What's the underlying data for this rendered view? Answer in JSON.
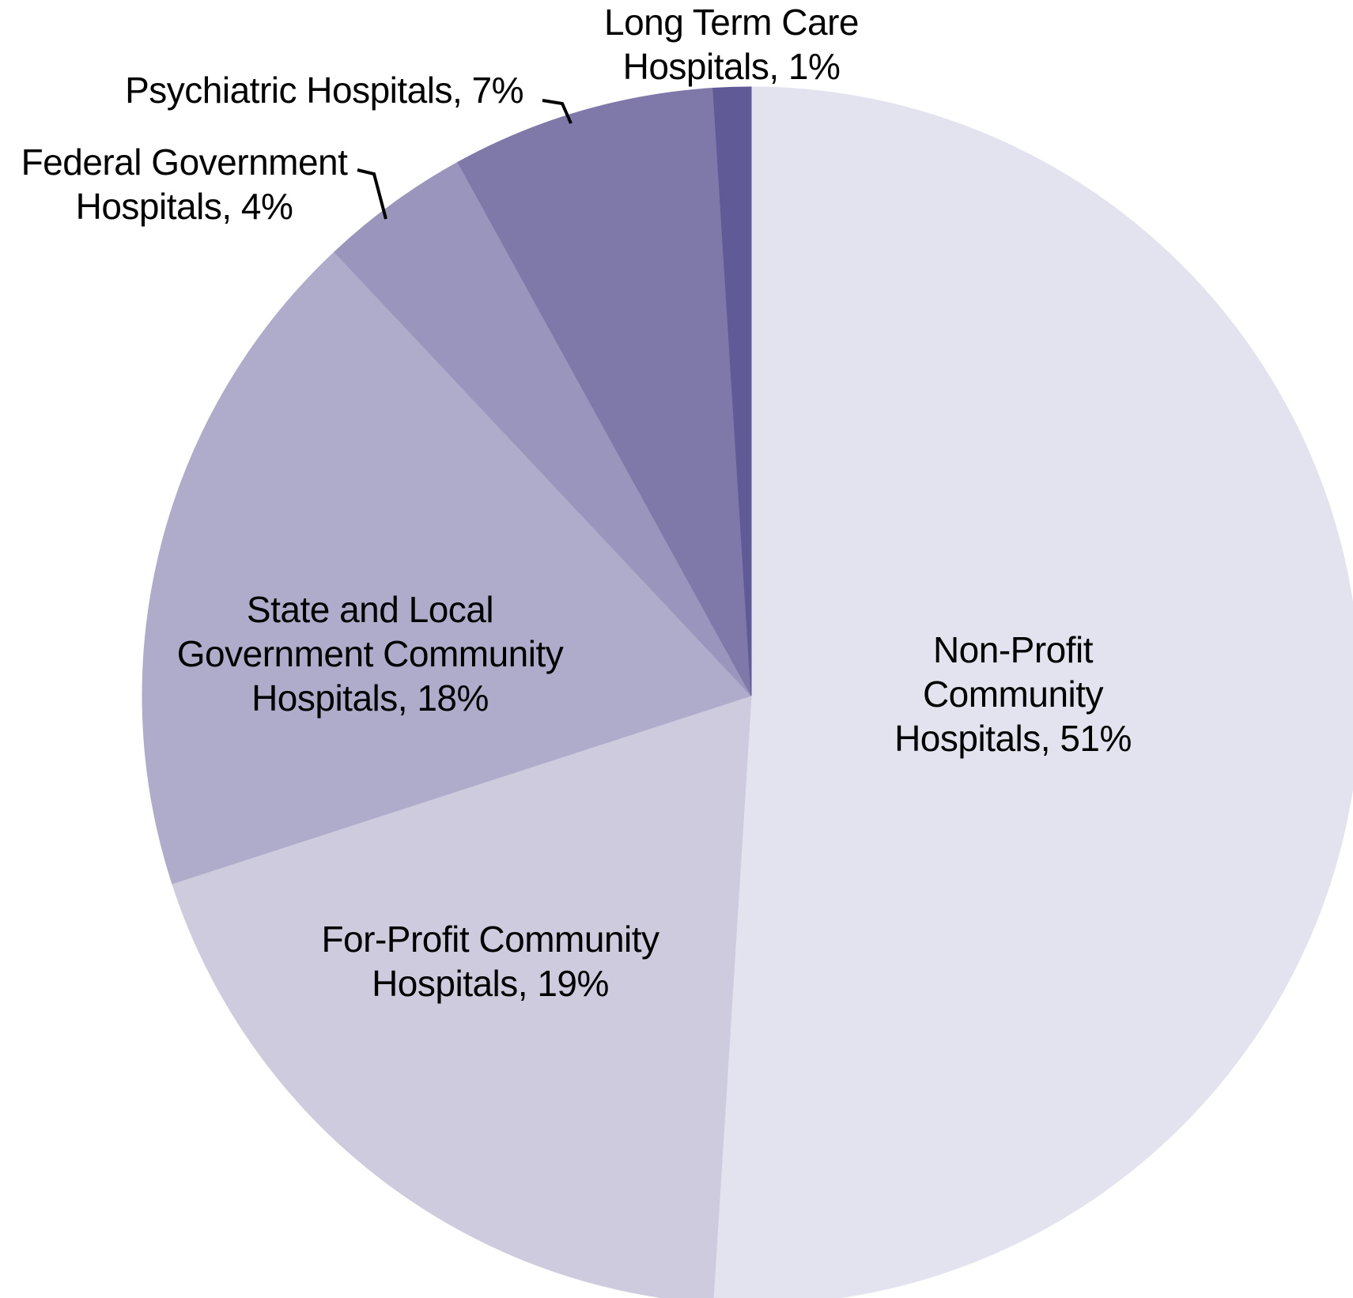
{
  "chart_data": {
    "type": "pie",
    "title": "",
    "unit": "%",
    "start_angle_deg": 0,
    "direction": "clockwise",
    "background": "#ffffff",
    "label_text_color": "#000000",
    "leader_line_color": "#000000",
    "legend_position": "none",
    "slices": [
      {
        "name": "Non-Profit Community Hospitals",
        "value": 51,
        "color": "#e3e2ef",
        "label": "Non-Profit Community\nHospitals, 51%"
      },
      {
        "name": "For-Profit Community Hospitals",
        "value": 19,
        "color": "#cecbde",
        "label": "For-Profit Community\nHospitals, 19%"
      },
      {
        "name": "State and Local Government Community Hospitals",
        "value": 18,
        "color": "#aeabcb",
        "label": "State and Local\nGovernment Community\nHospitals, 18%"
      },
      {
        "name": "Federal Government Hospitals",
        "value": 4,
        "color": "#9995bc",
        "label": "Federal Government\nHospitals, 4%"
      },
      {
        "name": "Psychiatric Hospitals",
        "value": 7,
        "color": "#7e79a9",
        "label": "Psychiatric Hospitals, 7%"
      },
      {
        "name": "Long Term Care Hospitals",
        "value": 1,
        "color": "#605b96",
        "label": "Long Term Care\nHospitals, 1%"
      }
    ]
  }
}
